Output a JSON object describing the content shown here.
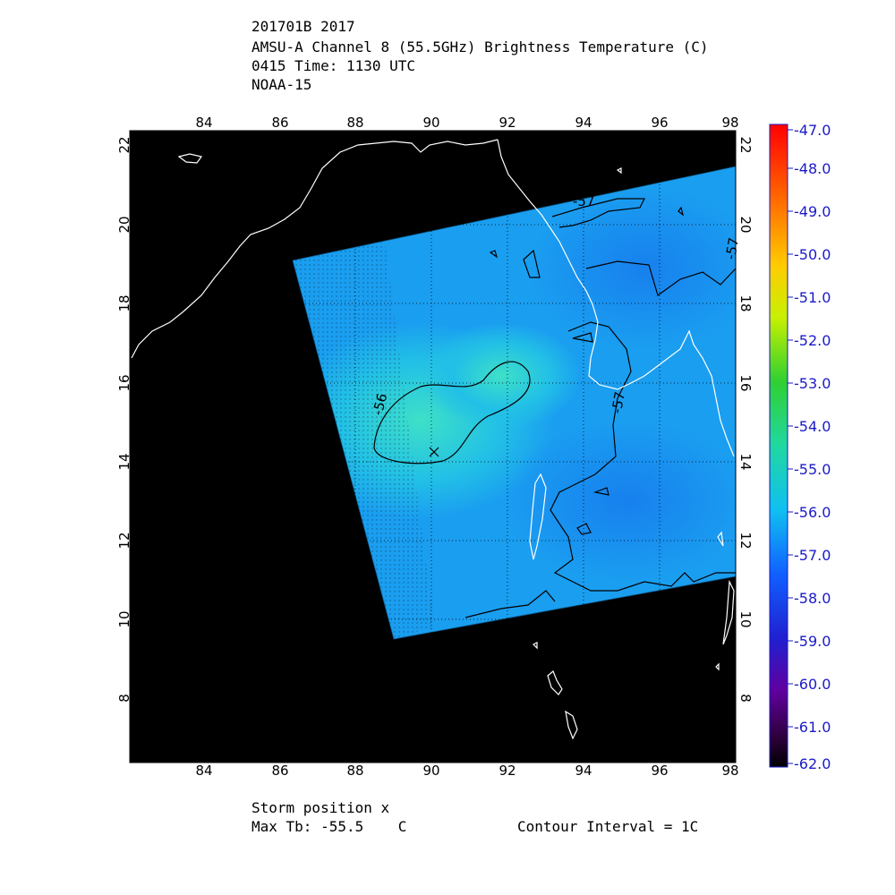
{
  "header": {
    "line1": "201701B 2017",
    "line2": "AMSU-A Channel 8 (55.5GHz) Brightness Temperature (C)",
    "line3": "0415 Time: 1130 UTC",
    "line4": "NOAA-15"
  },
  "map": {
    "lon_ticks": [
      "84",
      "86",
      "88",
      "90",
      "92",
      "94",
      "96",
      "98"
    ],
    "lat_ticks": [
      "8",
      "10",
      "12",
      "14",
      "16",
      "18",
      "20",
      "22"
    ],
    "contour_labels": [
      "-56",
      "-57",
      "-57",
      "-57"
    ],
    "storm_marker": "x",
    "colors": {
      "background": "#000000",
      "field_main": "#19a0f0",
      "field_warm": "#2fd0d8",
      "coast": "#ffffff",
      "contour": "#000000"
    }
  },
  "colorbar": {
    "labels": [
      "-47.0",
      "-48.0",
      "-49.0",
      "-50.0",
      "-51.0",
      "-52.0",
      "-53.0",
      "-54.0",
      "-55.0",
      "-56.0",
      "-57.0",
      "-58.0",
      "-59.0",
      "-60.0",
      "-61.0",
      "-62.0"
    ],
    "label_color": "#1a1ac8"
  },
  "footer": {
    "storm_position": "Storm position x",
    "max_tb": "Max Tb: -55.5    C",
    "contour_interval": "Contour Interval = 1C"
  }
}
